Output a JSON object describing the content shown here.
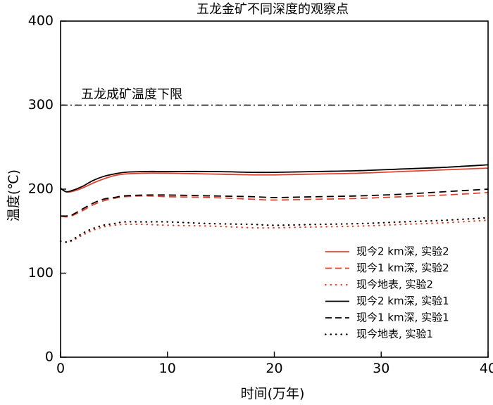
{
  "chart_data": {
    "type": "line",
    "title": "五龙金矿不同深度的观察点",
    "xlabel": "时间(万年)",
    "ylabel": "温度(℃)",
    "xlim": [
      0,
      40
    ],
    "ylim": [
      0,
      400
    ],
    "xticks": [
      0,
      10,
      20,
      30,
      40
    ],
    "yticks": [
      0,
      100,
      200,
      300,
      400
    ],
    "grid": false,
    "legend_position": "bottom-right",
    "reference_line": {
      "y": 300,
      "label": "五龙成矿温度下限",
      "style": "dash-dot",
      "color": "#000000"
    },
    "series": [
      {
        "name": "现今2 km深, 实验2",
        "color": "#e8402a",
        "style": "solid",
        "x": [
          0,
          0.5,
          1,
          2,
          3,
          4,
          5,
          6,
          8,
          10,
          14,
          18,
          20,
          24,
          28,
          32,
          36,
          40
        ],
        "y": [
          201,
          197,
          197,
          201,
          207,
          212,
          216,
          218,
          219,
          219,
          218,
          217,
          217,
          218,
          219,
          221,
          223,
          225
        ]
      },
      {
        "name": "现今1 km深, 实验2",
        "color": "#e8402a",
        "style": "dash",
        "x": [
          0,
          0.5,
          1,
          2,
          3,
          4,
          5,
          6,
          8,
          10,
          14,
          18,
          20,
          24,
          28,
          32,
          36,
          40
        ],
        "y": [
          168,
          167,
          168,
          174,
          181,
          186,
          189,
          191,
          192,
          191,
          190,
          188,
          187,
          188,
          189,
          191,
          193,
          196
        ]
      },
      {
        "name": "现今地表, 实验2",
        "color": "#e8402a",
        "style": "dot",
        "x": [
          0,
          0.5,
          1,
          2,
          3,
          4,
          5,
          6,
          8,
          10,
          14,
          18,
          20,
          24,
          28,
          32,
          36,
          40
        ],
        "y": [
          138,
          137,
          138,
          145,
          151,
          155,
          157,
          158,
          158,
          157,
          156,
          154,
          154,
          155,
          156,
          158,
          160,
          163
        ]
      },
      {
        "name": "现今2 km深, 实验1",
        "color": "#000000",
        "style": "solid",
        "x": [
          0,
          0.5,
          1,
          2,
          3,
          4,
          5,
          6,
          8,
          10,
          14,
          18,
          20,
          24,
          28,
          32,
          36,
          40
        ],
        "y": [
          201,
          197,
          198,
          203,
          210,
          215,
          218,
          220,
          221,
          221,
          221,
          220,
          220,
          221,
          222,
          224,
          226,
          229
        ]
      },
      {
        "name": "现今1 km深, 实验1",
        "color": "#000000",
        "style": "dash",
        "x": [
          0,
          0.5,
          1,
          2,
          3,
          4,
          5,
          6,
          8,
          10,
          14,
          18,
          20,
          24,
          28,
          32,
          36,
          40
        ],
        "y": [
          168,
          168,
          169,
          176,
          183,
          188,
          190,
          192,
          193,
          193,
          192,
          191,
          190,
          191,
          192,
          194,
          197,
          200
        ]
      },
      {
        "name": "现今地表, 实验1",
        "color": "#000000",
        "style": "dot",
        "x": [
          0,
          0.5,
          1,
          2,
          3,
          4,
          5,
          6,
          8,
          10,
          14,
          18,
          20,
          24,
          28,
          32,
          36,
          40
        ],
        "y": [
          138,
          137,
          139,
          147,
          153,
          157,
          159,
          161,
          161,
          161,
          159,
          158,
          157,
          158,
          159,
          161,
          163,
          166
        ]
      }
    ]
  }
}
